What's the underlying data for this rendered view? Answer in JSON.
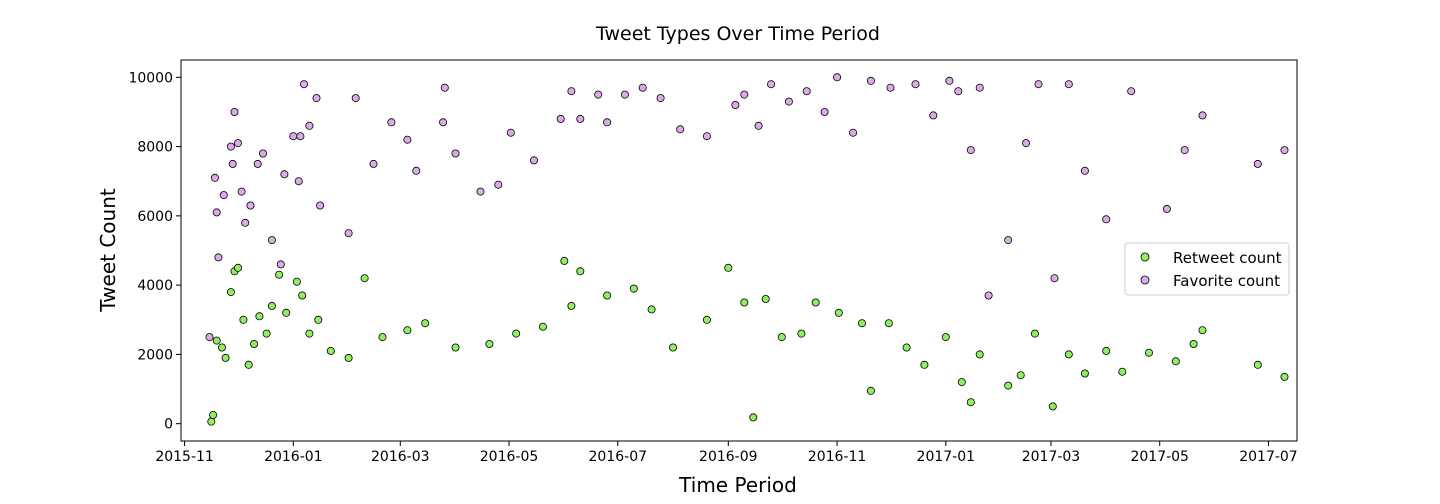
{
  "chart_data": {
    "type": "scatter",
    "title": "Tweet Types Over Time Period",
    "xlabel": "Time Period",
    "ylabel": "Tweet Count",
    "xlim": [
      "2015-10-30",
      "2017-07-17"
    ],
    "ylim": [
      -500,
      10500
    ],
    "x_ticks": [
      "2015-11",
      "2016-01",
      "2016-03",
      "2016-05",
      "2016-07",
      "2016-09",
      "2016-11",
      "2017-01",
      "2017-03",
      "2017-05",
      "2017-07"
    ],
    "y_ticks": [
      0,
      2000,
      4000,
      6000,
      8000,
      10000
    ],
    "legend_position": "center-right",
    "series": [
      {
        "name": "Retweet count",
        "color": "#90ee60",
        "points": [
          [
            "2015-11-16",
            60
          ],
          [
            "2015-11-17",
            250
          ],
          [
            "2015-11-19",
            2400
          ],
          [
            "2015-11-22",
            2200
          ],
          [
            "2015-11-24",
            1900
          ],
          [
            "2015-11-27",
            3800
          ],
          [
            "2015-11-29",
            4400
          ],
          [
            "2015-12-01",
            4500
          ],
          [
            "2015-12-04",
            3000
          ],
          [
            "2015-12-07",
            1700
          ],
          [
            "2015-12-10",
            2300
          ],
          [
            "2015-12-13",
            3100
          ],
          [
            "2015-12-17",
            2600
          ],
          [
            "2015-12-20",
            3400
          ],
          [
            "2015-12-24",
            4300
          ],
          [
            "2015-12-28",
            3200
          ],
          [
            "2016-01-03",
            4100
          ],
          [
            "2016-01-06",
            3700
          ],
          [
            "2016-01-10",
            2600
          ],
          [
            "2016-01-15",
            3000
          ],
          [
            "2016-01-22",
            2100
          ],
          [
            "2016-02-01",
            1900
          ],
          [
            "2016-02-10",
            4200
          ],
          [
            "2016-02-20",
            2500
          ],
          [
            "2016-03-05",
            2700
          ],
          [
            "2016-03-15",
            2900
          ],
          [
            "2016-04-01",
            2200
          ],
          [
            "2016-04-20",
            2300
          ],
          [
            "2016-05-05",
            2600
          ],
          [
            "2016-05-20",
            2800
          ],
          [
            "2016-06-01",
            4700
          ],
          [
            "2016-06-05",
            3400
          ],
          [
            "2016-06-10",
            4400
          ],
          [
            "2016-06-25",
            3700
          ],
          [
            "2016-07-10",
            3900
          ],
          [
            "2016-07-20",
            3300
          ],
          [
            "2016-08-01",
            2200
          ],
          [
            "2016-08-20",
            3000
          ],
          [
            "2016-09-01",
            4500
          ],
          [
            "2016-09-10",
            3500
          ],
          [
            "2016-09-15",
            180
          ],
          [
            "2016-09-22",
            3600
          ],
          [
            "2016-10-01",
            2500
          ],
          [
            "2016-10-12",
            2600
          ],
          [
            "2016-10-20",
            3500
          ],
          [
            "2016-11-02",
            3200
          ],
          [
            "2016-11-15",
            2900
          ],
          [
            "2016-11-20",
            950
          ],
          [
            "2016-11-30",
            2900
          ],
          [
            "2016-12-10",
            2200
          ],
          [
            "2016-12-20",
            1700
          ],
          [
            "2017-01-01",
            2500
          ],
          [
            "2017-01-10",
            1200
          ],
          [
            "2017-01-15",
            620
          ],
          [
            "2017-01-20",
            2000
          ],
          [
            "2017-02-05",
            1100
          ],
          [
            "2017-02-12",
            1400
          ],
          [
            "2017-02-20",
            2600
          ],
          [
            "2017-03-02",
            500
          ],
          [
            "2017-03-11",
            2000
          ],
          [
            "2017-03-20",
            1450
          ],
          [
            "2017-04-01",
            2100
          ],
          [
            "2017-04-10",
            1500
          ],
          [
            "2017-04-25",
            2050
          ],
          [
            "2017-05-10",
            1800
          ],
          [
            "2017-05-20",
            2300
          ],
          [
            "2017-05-25",
            2700
          ],
          [
            "2017-06-25",
            1700
          ],
          [
            "2017-07-10",
            1350
          ]
        ]
      },
      {
        "name": "Favorite count",
        "color": "#dcaae8",
        "points": [
          [
            "2015-11-15",
            2500
          ],
          [
            "2015-11-18",
            7100
          ],
          [
            "2015-11-19",
            6100
          ],
          [
            "2015-11-20",
            4800
          ],
          [
            "2015-11-23",
            6600
          ],
          [
            "2015-11-27",
            8000
          ],
          [
            "2015-11-28",
            7500
          ],
          [
            "2015-11-29",
            9000
          ],
          [
            "2015-12-01",
            8100
          ],
          [
            "2015-12-03",
            6700
          ],
          [
            "2015-12-05",
            5800
          ],
          [
            "2015-12-08",
            6300
          ],
          [
            "2015-12-12",
            7500
          ],
          [
            "2015-12-15",
            7800
          ],
          [
            "2015-12-20",
            5300
          ],
          [
            "2015-12-25",
            4600
          ],
          [
            "2015-12-27",
            7200
          ],
          [
            "2016-01-01",
            8300
          ],
          [
            "2016-01-04",
            7000
          ],
          [
            "2016-01-05",
            8300
          ],
          [
            "2016-01-07",
            9800
          ],
          [
            "2016-01-10",
            8600
          ],
          [
            "2016-01-14",
            9400
          ],
          [
            "2016-01-16",
            6300
          ],
          [
            "2016-02-01",
            5500
          ],
          [
            "2016-02-05",
            9400
          ],
          [
            "2016-02-15",
            7500
          ],
          [
            "2016-02-25",
            8700
          ],
          [
            "2016-03-05",
            8200
          ],
          [
            "2016-03-10",
            7300
          ],
          [
            "2016-03-25",
            8700
          ],
          [
            "2016-03-26",
            9700
          ],
          [
            "2016-04-01",
            7800
          ],
          [
            "2016-04-15",
            6700
          ],
          [
            "2016-04-25",
            6900
          ],
          [
            "2016-05-02",
            8400
          ],
          [
            "2016-05-15",
            7600
          ],
          [
            "2016-05-30",
            8800
          ],
          [
            "2016-06-05",
            9600
          ],
          [
            "2016-06-10",
            8800
          ],
          [
            "2016-06-20",
            9500
          ],
          [
            "2016-06-25",
            8700
          ],
          [
            "2016-07-05",
            9500
          ],
          [
            "2016-07-15",
            9700
          ],
          [
            "2016-07-25",
            9400
          ],
          [
            "2016-08-05",
            8500
          ],
          [
            "2016-08-20",
            8300
          ],
          [
            "2016-09-05",
            9200
          ],
          [
            "2016-09-10",
            9500
          ],
          [
            "2016-09-18",
            8600
          ],
          [
            "2016-09-25",
            9800
          ],
          [
            "2016-10-05",
            9300
          ],
          [
            "2016-10-15",
            9600
          ],
          [
            "2016-10-25",
            9000
          ],
          [
            "2016-11-01",
            10000
          ],
          [
            "2016-11-10",
            8400
          ],
          [
            "2016-11-20",
            9900
          ],
          [
            "2016-12-01",
            9700
          ],
          [
            "2016-12-15",
            9800
          ],
          [
            "2016-12-25",
            8900
          ],
          [
            "2017-01-03",
            9900
          ],
          [
            "2017-01-08",
            9600
          ],
          [
            "2017-01-15",
            7900
          ],
          [
            "2017-01-20",
            9700
          ],
          [
            "2017-01-25",
            3700
          ],
          [
            "2017-02-05",
            5300
          ],
          [
            "2017-02-15",
            8100
          ],
          [
            "2017-02-22",
            9800
          ],
          [
            "2017-03-03",
            4200
          ],
          [
            "2017-03-11",
            9800
          ],
          [
            "2017-03-20",
            7300
          ],
          [
            "2017-04-01",
            5900
          ],
          [
            "2017-04-15",
            9600
          ],
          [
            "2017-05-05",
            6200
          ],
          [
            "2017-05-15",
            7900
          ],
          [
            "2017-05-25",
            8900
          ],
          [
            "2017-06-25",
            7500
          ],
          [
            "2017-07-10",
            7900
          ]
        ]
      }
    ]
  }
}
